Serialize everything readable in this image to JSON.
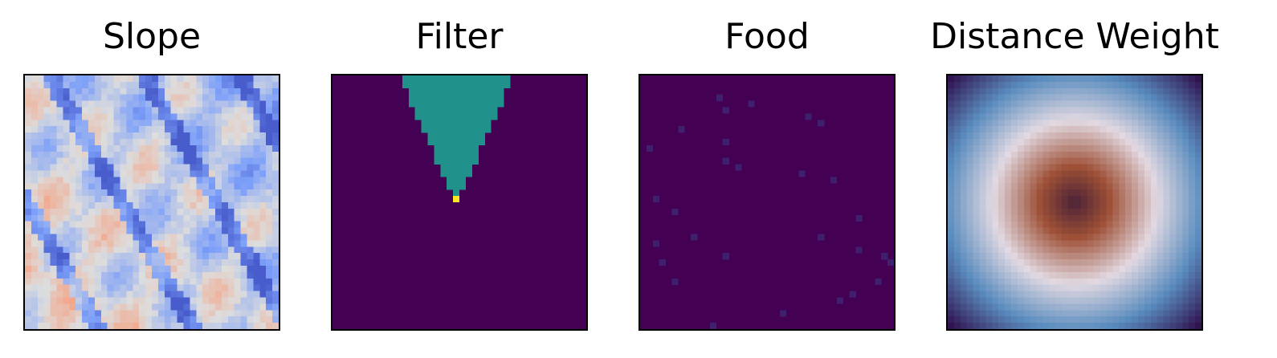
{
  "chart_data": [
    {
      "type": "heatmap",
      "title": "Slope",
      "colormap": "coolwarm",
      "grid_size": 40,
      "grid": false,
      "axis_ticks": false,
      "pattern": "diagonal ridges; low values (blue) dominate upper-right, high values (light red) lower-left"
    },
    {
      "type": "heatmap",
      "title": "Filter",
      "colormap": "viridis",
      "grid_size": 40,
      "grid": false,
      "axis_ticks": false,
      "values_present": [
        0,
        0.5,
        1
      ],
      "cone": {
        "apex_col": 19.5,
        "apex_row": 19,
        "top_half_width": 8.3
      },
      "agent_cell": [
        19,
        19
      ]
    },
    {
      "type": "heatmap",
      "title": "Food",
      "colormap": "viridis",
      "grid_size": 40,
      "grid": false,
      "axis_ticks": false,
      "food_cells": [
        [
          12,
          3
        ],
        [
          17,
          4
        ],
        [
          13,
          5
        ],
        [
          26,
          6
        ],
        [
          28,
          7
        ],
        [
          6,
          8
        ],
        [
          13,
          10
        ],
        [
          1,
          11
        ],
        [
          13,
          13
        ],
        [
          15,
          14
        ],
        [
          25,
          15
        ],
        [
          30,
          16
        ],
        [
          2,
          19
        ],
        [
          5,
          21
        ],
        [
          34,
          22
        ],
        [
          8,
          25
        ],
        [
          28,
          25
        ],
        [
          2,
          26
        ],
        [
          34,
          27
        ],
        [
          3,
          29
        ],
        [
          13,
          28
        ],
        [
          38,
          28
        ],
        [
          39,
          29
        ],
        [
          5,
          32
        ],
        [
          37,
          32
        ],
        [
          33,
          34
        ],
        [
          31,
          35
        ],
        [
          22,
          37
        ],
        [
          11,
          39
        ]
      ]
    },
    {
      "type": "heatmap",
      "title": "Distance Weight",
      "colormap": "twilight_shifted",
      "grid_size": 40,
      "grid": false,
      "axis_ticks": false,
      "pattern": "radial, dark center, light ring at mid radius, purple corners"
    }
  ]
}
